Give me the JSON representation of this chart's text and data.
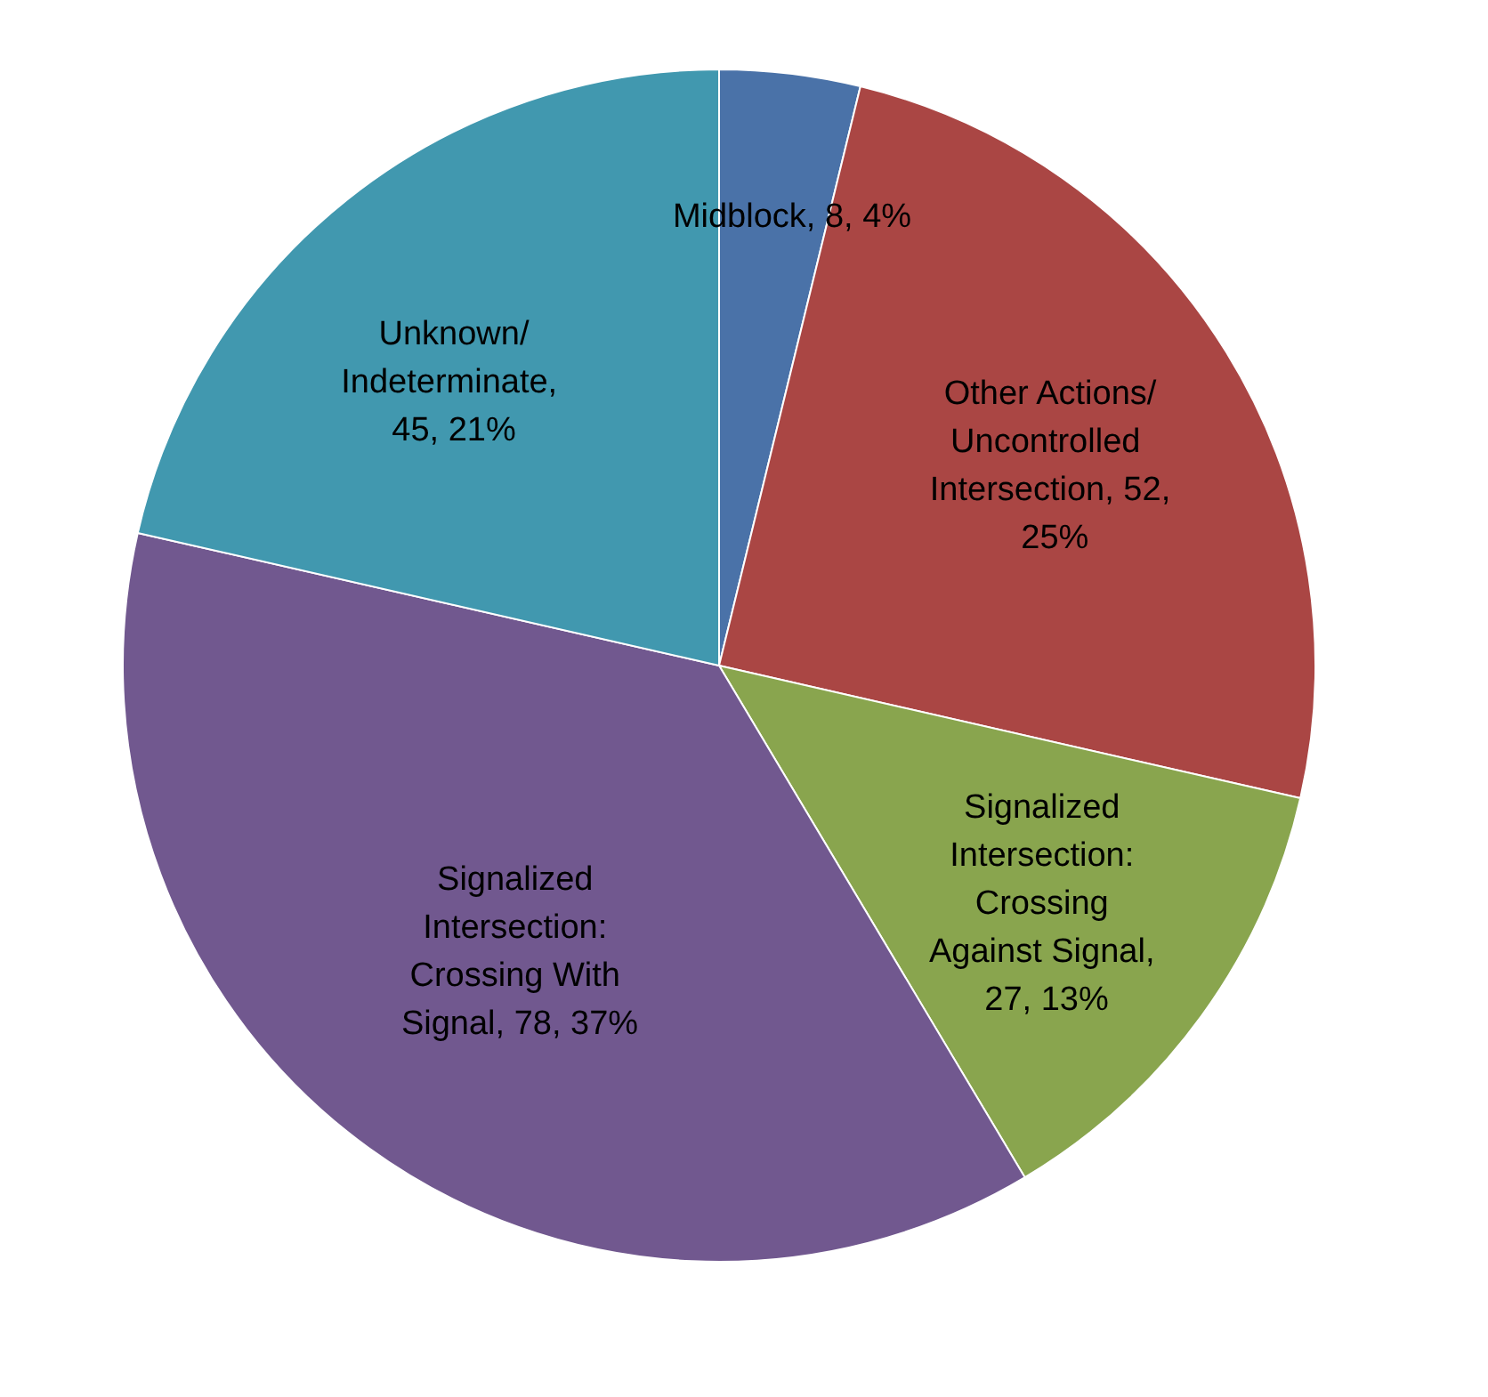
{
  "chart_data": {
    "type": "pie",
    "categories": [
      "Midblock",
      "Other Actions/Uncontrolled Intersection",
      "Signalized Intersection: Crossing Against Signal",
      "Signalized Intersection: Crossing With Signal",
      "Unknown/Indeterminate"
    ],
    "values": [
      8,
      52,
      27,
      78,
      45
    ],
    "colors": [
      "#4a72a8",
      "#aa4644",
      "#89a54e",
      "#71588f",
      "#4198af"
    ],
    "value_labels": [
      ", 8, 4%",
      ", 52, 25%",
      ", 27, 13%",
      ", 78, 37%",
      ", 45, 21%"
    ],
    "legend": false
  }
}
